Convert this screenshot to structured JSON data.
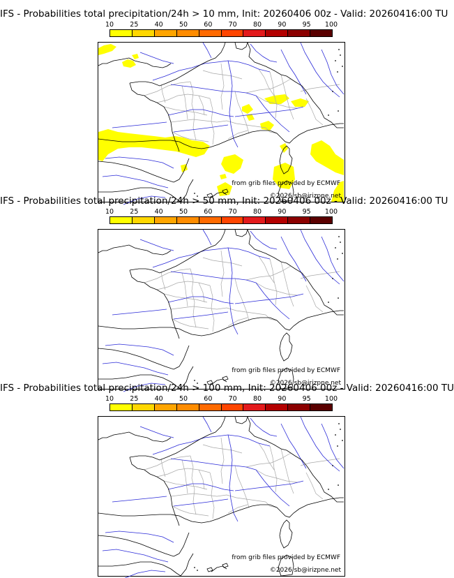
{
  "panels": [
    {
      "title": "IFS - Probabilities total precipitation/24h > 10 mm, Init: 20260406 00z - Valid: 20260416:00 TU",
      "show_precip": true
    },
    {
      "title": "IFS - Probabilities total precipitation/24h > 50 mm, Init: 20260406 00z - Valid: 20260416:00 TU",
      "show_precip": false
    },
    {
      "title": "IFS - Probabilities total precipitation/24h > 100 mm, Init: 20260406 00z - Valid: 20260416:00 TU",
      "show_precip": false
    }
  ],
  "scale": {
    "labels": [
      "10",
      "25",
      "40",
      "50",
      "60",
      "70",
      "80",
      "90",
      "95",
      "100"
    ],
    "colors": [
      "#ffff00",
      "#ffd700",
      "#ffa500",
      "#ff8c00",
      "#ff6a00",
      "#ff4500",
      "#e31a1c",
      "#b30000",
      "#8b0000",
      "#5a0000"
    ]
  },
  "credits": {
    "source": "from grib files provided by ECMWF",
    "copyright": "©2026 sb@irizpne.net"
  },
  "colors": {
    "coast": "#000000",
    "rivers": "#2a2ad8",
    "regions": "#a8a8a8",
    "precip": "#ffff00"
  }
}
